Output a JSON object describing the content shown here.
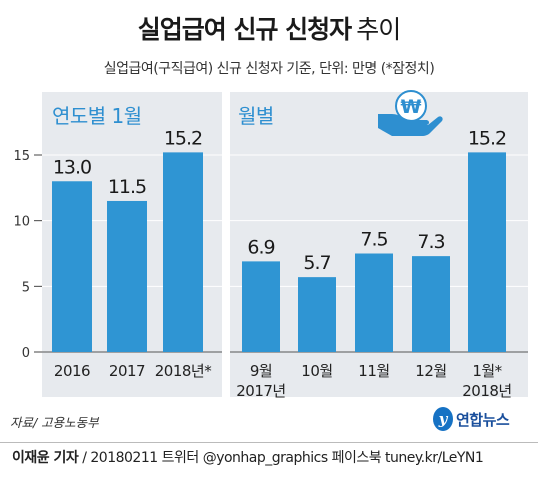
{
  "title": "실업급여 신규 신청자",
  "title_suffix": "추이",
  "subtitle": "실업급여(구직급여) 신규 신청자 기준, 단위: 만명 (*잠정치)",
  "source": "자료/ 고용노동부",
  "footer": {
    "author": "이재윤 기자",
    "rest": " / 20180211   트위터 @yonhap_graphics  페이스북 tuney.kr/LeYN1"
  },
  "logo": {
    "mark": "y",
    "text": "연합뉴스"
  },
  "icon": "won-coin-on-hand-icon",
  "colors": {
    "bar": "#2f95d3",
    "panel": "#e7eaee",
    "label": "#2e8fd0",
    "icon": "#2e8fd0"
  },
  "chart_data": [
    {
      "type": "bar",
      "title": "연도별 1월",
      "categories": [
        "2016",
        "2017",
        "2018년*"
      ],
      "values": [
        13.0,
        11.5,
        15.2
      ],
      "value_labels": [
        "13.0",
        "11.5",
        "15.2"
      ],
      "ylim": [
        0,
        15
      ],
      "yticks": [
        0,
        5,
        10,
        15
      ],
      "grid": true
    },
    {
      "type": "bar",
      "title": "월별",
      "categories": [
        "9월\n2017년",
        "10월",
        "11월",
        "12월",
        "1월*\n2018년"
      ],
      "values": [
        6.9,
        5.7,
        7.5,
        7.3,
        15.2
      ],
      "value_labels": [
        "6.9",
        "5.7",
        "7.5",
        "7.3",
        "15.2"
      ],
      "ylim": [
        0,
        15
      ],
      "grid": true
    }
  ]
}
